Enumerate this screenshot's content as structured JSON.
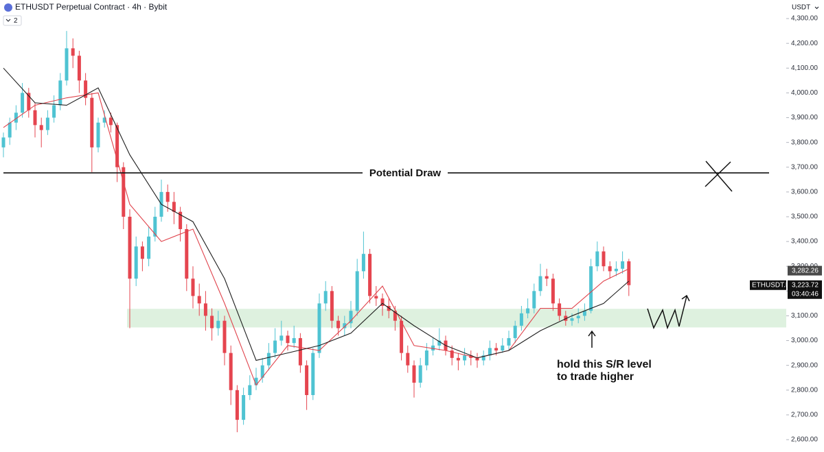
{
  "header": {
    "title": "ETHUSDT Perpetual Contract · 4h · Bybit",
    "indicator_count": 2,
    "currency": "USDT"
  },
  "chart_data": {
    "type": "candlestick",
    "up_color": "#4fc3d2",
    "down_color": "#e5454f",
    "ylim": [
      2564,
      4375
    ],
    "yticks": [
      {
        "value": 2600,
        "label": "2,600.00"
      },
      {
        "value": 2700,
        "label": "2,700.00"
      },
      {
        "value": 2800,
        "label": "2,800.00"
      },
      {
        "value": 2900,
        "label": "2,900.00"
      },
      {
        "value": 3000,
        "label": "3,000.00"
      },
      {
        "value": 3100,
        "label": "3,100.00"
      },
      {
        "value": 3200,
        "label": "3,200.00"
      },
      {
        "value": 3300,
        "label": "3,300.00"
      },
      {
        "value": 3400,
        "label": "3,400.00"
      },
      {
        "value": 3500,
        "label": "3,500.00"
      },
      {
        "value": 3600,
        "label": "3,600.00"
      },
      {
        "value": 3700,
        "label": "3,700.00"
      },
      {
        "value": 3800,
        "label": "3,800.00"
      },
      {
        "value": 3900,
        "label": "3,900.00"
      },
      {
        "value": 4000,
        "label": "4,000.00"
      },
      {
        "value": 4100,
        "label": "4,100.00"
      },
      {
        "value": 4200,
        "label": "4,200.00"
      },
      {
        "value": 4300,
        "label": "4,300.00"
      }
    ],
    "candles": [
      [
        3780,
        3840,
        3740,
        3820
      ],
      [
        3820,
        3900,
        3790,
        3880
      ],
      [
        3880,
        3950,
        3850,
        3920
      ],
      [
        3920,
        4040,
        3900,
        4000
      ],
      [
        4000,
        4020,
        3900,
        3930
      ],
      [
        3930,
        3960,
        3820,
        3870
      ],
      [
        3870,
        3900,
        3780,
        3850
      ],
      [
        3850,
        3930,
        3830,
        3900
      ],
      [
        3900,
        3990,
        3880,
        3950
      ],
      [
        3950,
        4080,
        3930,
        4050
      ],
      [
        4050,
        4250,
        4030,
        4180
      ],
      [
        4180,
        4220,
        4100,
        4150
      ],
      [
        4150,
        4170,
        4000,
        4050
      ],
      [
        4050,
        4080,
        3950,
        3980
      ],
      [
        3980,
        4000,
        3680,
        3780
      ],
      [
        3780,
        3900,
        3760,
        3880
      ],
      [
        3880,
        3930,
        3860,
        3900
      ],
      [
        3900,
        3920,
        3840,
        3870
      ],
      [
        3870,
        3880,
        3640,
        3700
      ],
      [
        3700,
        3720,
        3450,
        3500
      ],
      [
        3500,
        3530,
        3050,
        3250
      ],
      [
        3250,
        3420,
        3220,
        3380
      ],
      [
        3380,
        3400,
        3280,
        3330
      ],
      [
        3330,
        3460,
        3300,
        3420
      ],
      [
        3420,
        3540,
        3400,
        3500
      ],
      [
        3500,
        3650,
        3480,
        3600
      ],
      [
        3600,
        3630,
        3520,
        3560
      ],
      [
        3560,
        3600,
        3470,
        3520
      ],
      [
        3520,
        3540,
        3400,
        3450
      ],
      [
        3450,
        3470,
        3200,
        3250
      ],
      [
        3250,
        3300,
        3130,
        3180
      ],
      [
        3180,
        3230,
        3100,
        3150
      ],
      [
        3150,
        3200,
        3040,
        3100
      ],
      [
        3100,
        3130,
        3000,
        3050
      ],
      [
        3050,
        3120,
        3020,
        3080
      ],
      [
        3080,
        3100,
        2900,
        2950
      ],
      [
        2950,
        2980,
        2740,
        2800
      ],
      [
        2800,
        2820,
        2630,
        2680
      ],
      [
        2680,
        2810,
        2660,
        2780
      ],
      [
        2780,
        2860,
        2760,
        2820
      ],
      [
        2820,
        2890,
        2800,
        2850
      ],
      [
        2850,
        2930,
        2830,
        2900
      ],
      [
        2900,
        2990,
        2880,
        2950
      ],
      [
        2950,
        3050,
        2930,
        3000
      ],
      [
        3000,
        3080,
        2980,
        3020
      ],
      [
        3020,
        3040,
        2960,
        2990
      ],
      [
        2990,
        3060,
        2970,
        3010
      ],
      [
        3010,
        3030,
        2870,
        2900
      ],
      [
        2900,
        2920,
        2720,
        2780
      ],
      [
        2780,
        2970,
        2760,
        2950
      ],
      [
        2950,
        3190,
        2930,
        3150
      ],
      [
        3150,
        3240,
        3120,
        3200
      ],
      [
        3200,
        3220,
        3050,
        3080
      ],
      [
        3080,
        3100,
        3020,
        3050
      ],
      [
        3050,
        3100,
        3020,
        3070
      ],
      [
        3070,
        3160,
        3050,
        3120
      ],
      [
        3120,
        3330,
        3100,
        3280
      ],
      [
        3280,
        3440,
        3250,
        3350
      ],
      [
        3350,
        3370,
        3150,
        3180
      ],
      [
        3180,
        3220,
        3140,
        3170
      ],
      [
        3170,
        3190,
        3100,
        3140
      ],
      [
        3140,
        3170,
        3090,
        3120
      ],
      [
        3120,
        3140,
        3040,
        3080
      ],
      [
        3080,
        3100,
        2920,
        2950
      ],
      [
        2950,
        2980,
        2870,
        2900
      ],
      [
        2900,
        2920,
        2770,
        2830
      ],
      [
        2830,
        2930,
        2810,
        2900
      ],
      [
        2900,
        2990,
        2880,
        2960
      ],
      [
        2960,
        3010,
        2940,
        2980
      ],
      [
        2980,
        3050,
        2960,
        3000
      ],
      [
        3000,
        3020,
        2940,
        2960
      ],
      [
        2960,
        2980,
        2900,
        2930
      ],
      [
        2930,
        2950,
        2880,
        2920
      ],
      [
        2920,
        2970,
        2900,
        2940
      ],
      [
        2940,
        2960,
        2900,
        2930
      ],
      [
        2930,
        2950,
        2890,
        2920
      ],
      [
        2920,
        2960,
        2900,
        2940
      ],
      [
        2940,
        3000,
        2920,
        2970
      ],
      [
        2970,
        2990,
        2940,
        2960
      ],
      [
        2960,
        3010,
        2950,
        2980
      ],
      [
        2980,
        3040,
        2960,
        3010
      ],
      [
        3010,
        3080,
        2990,
        3060
      ],
      [
        3060,
        3140,
        3040,
        3110
      ],
      [
        3110,
        3170,
        3090,
        3130
      ],
      [
        3130,
        3230,
        3110,
        3200
      ],
      [
        3200,
        3310,
        3180,
        3260
      ],
      [
        3260,
        3290,
        3220,
        3250
      ],
      [
        3250,
        3270,
        3120,
        3150
      ],
      [
        3150,
        3170,
        3080,
        3100
      ],
      [
        3100,
        3120,
        3060,
        3080
      ],
      [
        3080,
        3110,
        3060,
        3090
      ],
      [
        3090,
        3130,
        3070,
        3100
      ],
      [
        3100,
        3150,
        3080,
        3120
      ],
      [
        3120,
        3330,
        3110,
        3300
      ],
      [
        3300,
        3400,
        3280,
        3360
      ],
      [
        3360,
        3380,
        3280,
        3300
      ],
      [
        3300,
        3320,
        3250,
        3280
      ],
      [
        3280,
        3320,
        3260,
        3290
      ],
      [
        3290,
        3360,
        3270,
        3320
      ],
      [
        3320,
        3330,
        3180,
        3223.72
      ]
    ],
    "moving_averages": {
      "x": [
        0,
        5,
        10,
        15,
        20,
        25,
        30,
        35,
        40,
        45,
        50,
        55,
        60,
        65,
        70,
        75,
        80,
        85,
        90,
        95,
        99
      ],
      "series": [
        {
          "color": "#e0434c",
          "values": [
            3860,
            3950,
            3980,
            4000,
            3550,
            3400,
            3450,
            3150,
            2820,
            2980,
            2960,
            3080,
            3220,
            2980,
            2960,
            2930,
            2960,
            3130,
            3130,
            3240,
            3290
          ]
        },
        {
          "color": "#1e1e1e",
          "values": [
            4100,
            3960,
            3950,
            4020,
            3750,
            3550,
            3480,
            3250,
            2920,
            2950,
            2980,
            3030,
            3150,
            3060,
            2980,
            2930,
            2960,
            3040,
            3100,
            3150,
            3240
          ]
        }
      ]
    },
    "levels": [
      {
        "label": "Potential Draw",
        "value": 3677
      }
    ],
    "zone": [
      3053,
      3128
    ],
    "annotation": [
      "hold this S/R level",
      "to trade higher"
    ],
    "price_labels": [
      {
        "value": 3282.26,
        "label": "3,282.26"
      },
      {
        "symbol": "ETHUSDT.P",
        "value": 3223.72,
        "label": "3,223.72",
        "countdown": "03:40:46"
      }
    ]
  }
}
